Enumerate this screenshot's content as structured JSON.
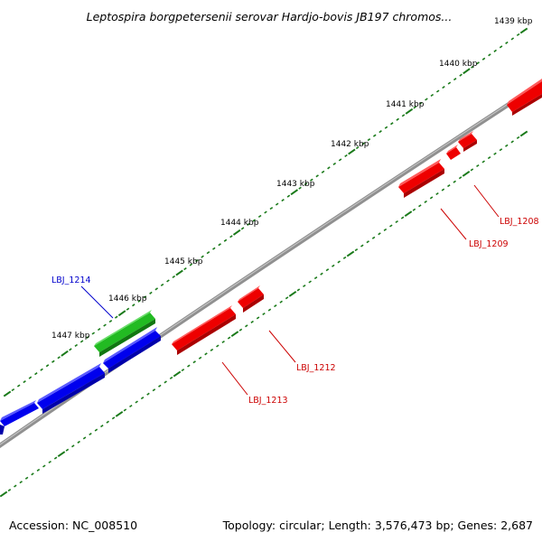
{
  "title": "Leptospira borgpetersenii serovar Hardjo-bovis JB197 chromos...",
  "footer": {
    "accession": "Accession: NC_008510",
    "summary": "Topology: circular; Length: 3,576,473 bp; Genes: 2,687"
  },
  "ticks": [
    {
      "kbp": 1439,
      "label": "1439 kbp"
    },
    {
      "kbp": 1440,
      "label": "1440 kbp"
    },
    {
      "kbp": 1441,
      "label": "1441 kbp"
    },
    {
      "kbp": 1442,
      "label": "1442 kbp"
    },
    {
      "kbp": 1443,
      "label": "1443 kbp"
    },
    {
      "kbp": 1444,
      "label": "1444 kbp"
    },
    {
      "kbp": 1445,
      "label": "1445 kbp"
    },
    {
      "kbp": 1446,
      "label": "1446 kbp"
    },
    {
      "kbp": 1447,
      "label": "1447 kbp"
    }
  ],
  "colors": {
    "backbone": "#808080",
    "tick": "#1a7a1a",
    "forward_blue": "#0000ee",
    "forward_green": "#22bb22",
    "reverse_red": "#ee0000",
    "label_blue": "#0000cc",
    "label_red": "#cc0000"
  },
  "labels": {
    "LBJ_1214": "LBJ_1214",
    "LBJ_1212": "LBJ_1212",
    "LBJ_1213": "LBJ_1213",
    "LBJ_1209": "LBJ_1209",
    "LBJ_1208": "LBJ_1208"
  }
}
